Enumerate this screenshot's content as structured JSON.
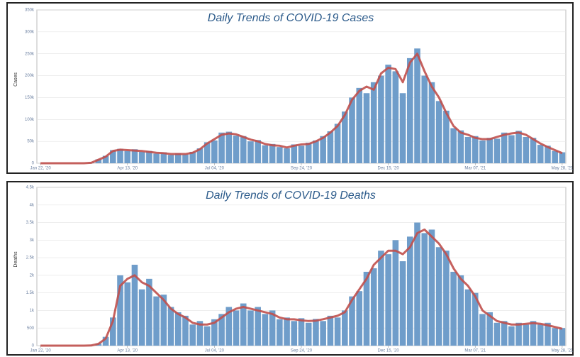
{
  "chart_data": [
    {
      "type": "bar",
      "title": "Daily Trends of COVID-19 Cases",
      "y_label": "Cases",
      "categories": [
        "Jan 22, '20",
        null,
        null,
        null,
        null,
        null,
        null,
        null,
        null,
        null,
        null,
        null,
        "Apr 13, '20",
        null,
        null,
        null,
        null,
        null,
        null,
        null,
        null,
        null,
        null,
        null,
        "Jul 04, '20",
        null,
        null,
        null,
        null,
        null,
        null,
        null,
        null,
        null,
        null,
        null,
        "Sep 24, '20",
        null,
        null,
        null,
        null,
        null,
        null,
        null,
        null,
        null,
        null,
        null,
        "Dec 15, '20",
        null,
        null,
        null,
        null,
        null,
        null,
        null,
        null,
        null,
        null,
        null,
        "Mar 07, '21",
        null,
        null,
        null,
        null,
        null,
        null,
        null,
        null,
        null,
        null,
        null,
        "May 28, '21"
      ],
      "series": [
        {
          "kind": "bar",
          "color": "#6f9dca",
          "values": [
            0,
            0,
            0,
            0,
            0,
            0,
            200,
            1500,
            9000,
            17000,
            30000,
            33000,
            28000,
            32000,
            26000,
            28000,
            22000,
            25000,
            19000,
            23000,
            20000,
            26000,
            34000,
            48000,
            52000,
            70000,
            72000,
            63000,
            62000,
            50000,
            53000,
            41000,
            44000,
            37000,
            34000,
            43000,
            40000,
            47000,
            52000,
            62000,
            73000,
            90000,
            118000,
            150000,
            172000,
            160000,
            185000,
            200000,
            225000,
            210000,
            160000,
            240000,
            262000,
            200000,
            185000,
            142000,
            120000,
            80000,
            75000,
            60000,
            62000,
            52000,
            58000,
            56000,
            70000,
            64000,
            74000,
            60000,
            58000,
            42000,
            40000,
            28000,
            25000
          ]
        },
        {
          "kind": "line",
          "color": "#c0504d",
          "values": [
            0,
            0,
            0,
            0,
            0,
            0,
            100,
            1000,
            8000,
            15000,
            28000,
            31000,
            30000,
            29000,
            28000,
            26000,
            24000,
            23000,
            21000,
            21000,
            21000,
            24000,
            32000,
            45000,
            55000,
            65000,
            68000,
            66000,
            60000,
            54000,
            50000,
            44000,
            41000,
            40000,
            36000,
            40000,
            43000,
            44000,
            50000,
            58000,
            70000,
            85000,
            110000,
            145000,
            165000,
            175000,
            168000,
            205000,
            218000,
            215000,
            185000,
            230000,
            250000,
            210000,
            175000,
            150000,
            115000,
            85000,
            70000,
            65000,
            58000,
            55000,
            55000,
            60000,
            65000,
            68000,
            70000,
            65000,
            55000,
            45000,
            37000,
            30000,
            23000
          ]
        }
      ],
      "ylim": [
        0,
        350000
      ],
      "yticks": [
        0,
        {
          "value": 50000,
          "label": "50k"
        },
        {
          "value": 100000,
          "label": "100k"
        },
        {
          "value": 150000,
          "label": "150k"
        },
        {
          "value": 200000,
          "label": "200k"
        },
        {
          "value": 250000,
          "label": "250k"
        },
        {
          "value": 300000,
          "label": "300k"
        },
        {
          "value": 350000,
          "label": "350k"
        }
      ],
      "grid": true
    },
    {
      "type": "bar",
      "title": "Daily Trends of COVID-19 Deaths",
      "y_label": "Deaths",
      "categories": [
        "Jan 22, '20",
        null,
        null,
        null,
        null,
        null,
        null,
        null,
        null,
        null,
        null,
        null,
        "Apr 13, '20",
        null,
        null,
        null,
        null,
        null,
        null,
        null,
        null,
        null,
        null,
        null,
        "Jul 04, '20",
        null,
        null,
        null,
        null,
        null,
        null,
        null,
        null,
        null,
        null,
        null,
        "Sep 24, '20",
        null,
        null,
        null,
        null,
        null,
        null,
        null,
        null,
        null,
        null,
        null,
        "Dec 15, '20",
        null,
        null,
        null,
        null,
        null,
        null,
        null,
        null,
        null,
        null,
        null,
        "Mar 07, '21",
        null,
        null,
        null,
        null,
        null,
        null,
        null,
        null,
        null,
        null,
        null,
        "May 28, '21"
      ],
      "series": [
        {
          "kind": "bar",
          "color": "#6f9dca",
          "values": [
            0,
            0,
            0,
            0,
            0,
            0,
            0,
            10,
            60,
            250,
            800,
            2000,
            1800,
            2300,
            1600,
            1900,
            1400,
            1450,
            1100,
            950,
            850,
            600,
            700,
            550,
            750,
            900,
            1100,
            1000,
            1200,
            1000,
            1100,
            900,
            1000,
            750,
            800,
            700,
            780,
            650,
            760,
            700,
            850,
            800,
            1000,
            1400,
            1550,
            2100,
            2200,
            2700,
            2600,
            3000,
            2400,
            3100,
            3500,
            3200,
            3300,
            2800,
            2700,
            2100,
            2000,
            1600,
            1500,
            900,
            950,
            650,
            700,
            550,
            650,
            600,
            700,
            600,
            650,
            500,
            500
          ]
        },
        {
          "kind": "line",
          "color": "#c0504d",
          "values": [
            0,
            0,
            0,
            0,
            0,
            0,
            0,
            5,
            50,
            200,
            700,
            1700,
            1900,
            2000,
            1800,
            1700,
            1500,
            1300,
            1050,
            900,
            800,
            650,
            600,
            600,
            650,
            800,
            950,
            1050,
            1100,
            1050,
            1000,
            950,
            900,
            800,
            750,
            750,
            720,
            700,
            710,
            750,
            800,
            850,
            950,
            1300,
            1600,
            1900,
            2300,
            2500,
            2700,
            2700,
            2600,
            2800,
            3200,
            3300,
            3100,
            2900,
            2600,
            2200,
            1900,
            1700,
            1400,
            1000,
            850,
            700,
            650,
            600,
            600,
            620,
            640,
            620,
            580,
            530,
            480
          ]
        }
      ],
      "ylim": [
        0,
        4500
      ],
      "yticks": [
        0,
        500,
        {
          "value": 1000,
          "label": "1k"
        },
        {
          "value": 1500,
          "label": "1.5k"
        },
        {
          "value": 2000,
          "label": "2k"
        },
        {
          "value": 2500,
          "label": "2.5k"
        },
        {
          "value": 3000,
          "label": "3k"
        },
        {
          "value": 3500,
          "label": "3.5k"
        },
        {
          "value": 4000,
          "label": "4k"
        },
        {
          "value": 4500,
          "label": "4.5k"
        }
      ],
      "grid": true
    }
  ]
}
